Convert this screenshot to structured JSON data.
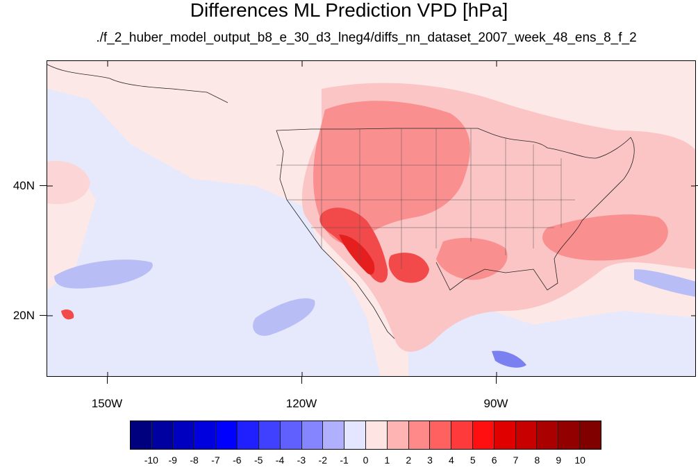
{
  "title": "Differences ML Prediction VPD [hPa]",
  "subtitle": "./f_2_huber_model_output_b8_e_30_d3_lneg4/diffs_nn_dataset_2007_week_48_ens_8_f_2",
  "lat_labels": [
    "40N",
    "20N"
  ],
  "lon_labels": [
    "150W",
    "120W",
    "90W"
  ],
  "colorbar": {
    "colors": [
      "#00007f",
      "#0000a0",
      "#0000c0",
      "#0000df",
      "#0000ff",
      "#2020ff",
      "#4040ff",
      "#6060ff",
      "#8585ff",
      "#b0b0ff",
      "#e4e6ff",
      "#ffe4e4",
      "#ffb4b4",
      "#ff8888",
      "#ff6060",
      "#ff3a3a",
      "#ff0f0f",
      "#e00000",
      "#c80000",
      "#ab0000",
      "#920000",
      "#800000"
    ],
    "labels": [
      "-10",
      "-9",
      "-8",
      "-7",
      "-6",
      "-5",
      "-4",
      "-3",
      "-2",
      "-1",
      "0",
      "1",
      "2",
      "3",
      "4",
      "5",
      "6",
      "7",
      "8",
      "9",
      "10"
    ]
  }
}
